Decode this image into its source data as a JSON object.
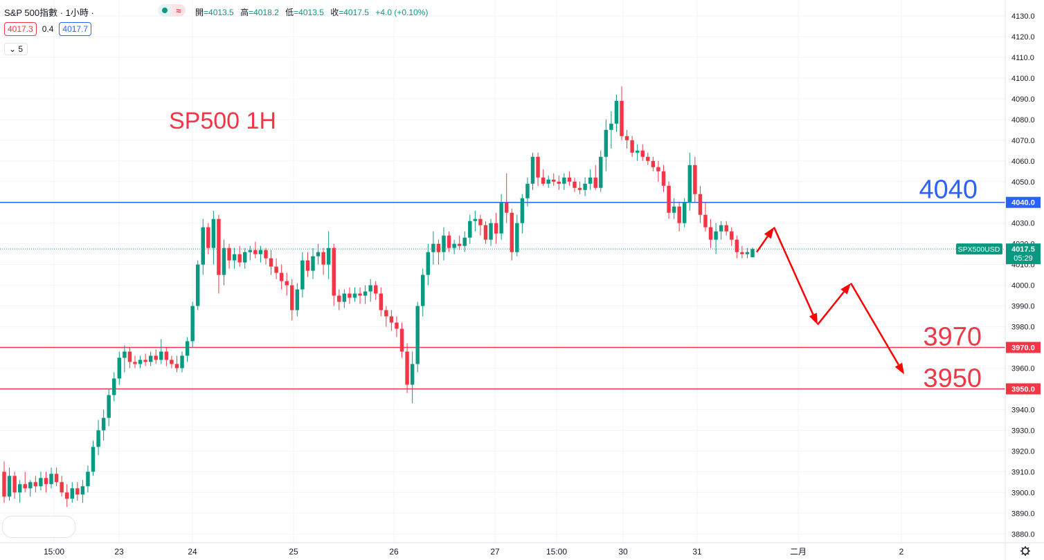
{
  "header": {
    "symbol_title": "S&P 500指數 · 1小時 ·",
    "ohlc": [
      {
        "label": "開",
        "value": "=4013.5"
      },
      {
        "label": "高",
        "value": "=4018.2"
      },
      {
        "label": "低",
        "value": "=4013.5"
      },
      {
        "label": "收",
        "value": "=4017.5"
      },
      {
        "label": "",
        "value": "+4.0 (+0.10%)"
      }
    ],
    "bid": "4017.3",
    "spread": "0.4",
    "ask": "4017.7",
    "indicators_count": "5",
    "wave_glyph": "≈"
  },
  "colors": {
    "up": "#089981",
    "down": "#f23645",
    "blue_line": "#2962ff",
    "red_line": "#f23645",
    "arrow": "#ff0000",
    "grid": "#f0f3fa",
    "axis_text": "#131722"
  },
  "chart_data": {
    "type": "candlestick",
    "annotation_title": "SP500 1H",
    "y_ticks": [
      3880,
      3890,
      3900,
      3910,
      3920,
      3930,
      3940,
      3950,
      3960,
      3970,
      3980,
      3990,
      4000,
      4010,
      4020,
      4030,
      4040,
      4050,
      4060,
      4070,
      4080,
      4090,
      4100,
      4110,
      4120,
      4130
    ],
    "ylim": [
      3877,
      4135
    ],
    "x_labels": [
      "15:00",
      "23",
      "24",
      "25",
      "26",
      "27",
      "15:00",
      "30",
      "31",
      "二月",
      "2"
    ],
    "horizontal_lines": [
      {
        "price": 4040.0,
        "label": "4040",
        "axis_label": "4040.0",
        "color": "#2962ff"
      },
      {
        "price": 3970.0,
        "label": "3970",
        "axis_label": "3970.0",
        "color": "#f23645"
      },
      {
        "price": 3950.0,
        "label": "3950",
        "axis_label": "3950.0",
        "color": "#f23645"
      }
    ],
    "current_price": {
      "symbol": "SPX500USD",
      "price": "4017.5",
      "countdown": "05:29",
      "value": 4017.5
    },
    "candles_ohlc": [
      [
        3910,
        3915,
        3895,
        3898
      ],
      [
        3898,
        3912,
        3896,
        3908
      ],
      [
        3908,
        3910,
        3897,
        3900
      ],
      [
        3900,
        3906,
        3895,
        3904
      ],
      [
        3904,
        3910,
        3900,
        3902
      ],
      [
        3902,
        3906,
        3898,
        3905
      ],
      [
        3905,
        3908,
        3900,
        3903
      ],
      [
        3903,
        3910,
        3901,
        3907
      ],
      [
        3907,
        3910,
        3900,
        3904
      ],
      [
        3904,
        3912,
        3902,
        3909
      ],
      [
        3909,
        3912,
        3903,
        3905
      ],
      [
        3905,
        3908,
        3898,
        3900
      ],
      [
        3900,
        3904,
        3893,
        3897
      ],
      [
        3897,
        3905,
        3895,
        3902
      ],
      [
        3902,
        3905,
        3896,
        3899
      ],
      [
        3899,
        3906,
        3895,
        3903
      ],
      [
        3903,
        3913,
        3900,
        3910
      ],
      [
        3910,
        3925,
        3908,
        3922
      ],
      [
        3922,
        3935,
        3918,
        3930
      ],
      [
        3930,
        3940,
        3925,
        3936
      ],
      [
        3936,
        3950,
        3932,
        3947
      ],
      [
        3947,
        3958,
        3944,
        3955
      ],
      [
        3955,
        3968,
        3952,
        3965
      ],
      [
        3965,
        3971,
        3958,
        3968
      ],
      [
        3968,
        3970,
        3960,
        3963
      ],
      [
        3963,
        3966,
        3960,
        3962
      ],
      [
        3962,
        3966,
        3960,
        3964
      ],
      [
        3964,
        3967,
        3961,
        3963
      ],
      [
        3963,
        3968,
        3961,
        3966
      ],
      [
        3966,
        3969,
        3962,
        3964
      ],
      [
        3964,
        3974,
        3962,
        3968
      ],
      [
        3968,
        3970,
        3961,
        3964
      ],
      [
        3964,
        3966,
        3960,
        3962
      ],
      [
        3962,
        3966,
        3958,
        3960
      ],
      [
        3960,
        3968,
        3958,
        3966
      ],
      [
        3966,
        3975,
        3963,
        3973
      ],
      [
        3973,
        3992,
        3970,
        3990
      ],
      [
        3990,
        4012,
        3988,
        4010
      ],
      [
        4010,
        4032,
        4005,
        4028
      ],
      [
        4028,
        4030,
        4015,
        4018
      ],
      [
        4018,
        4036,
        4010,
        4032
      ],
      [
        4032,
        4034,
        3996,
        4005
      ],
      [
        4005,
        4022,
        4000,
        4018
      ],
      [
        4018,
        4020,
        4008,
        4012
      ],
      [
        4012,
        4018,
        4008,
        4015
      ],
      [
        4015,
        4019,
        4009,
        4011
      ],
      [
        4011,
        4018,
        4008,
        4016
      ],
      [
        4016,
        4019,
        4012,
        4017
      ],
      [
        4017,
        4021,
        4013,
        4015
      ],
      [
        4015,
        4019,
        4011,
        4017
      ],
      [
        4017,
        4018,
        4010,
        4013
      ],
      [
        4013,
        4017,
        4005,
        4009
      ],
      [
        4009,
        4013,
        4003,
        4006
      ],
      [
        4006,
        4010,
        3998,
        4002
      ],
      [
        4002,
        4006,
        3995,
        4000
      ],
      [
        4000,
        4003,
        3983,
        3988
      ],
      [
        3988,
        4001,
        3985,
        3998
      ],
      [
        3998,
        4016,
        3994,
        4012
      ],
      [
        4012,
        4016,
        4004,
        4007
      ],
      [
        4007,
        4018,
        4003,
        4014
      ],
      [
        4014,
        4020,
        4010,
        4016
      ],
      [
        4016,
        4018,
        4005,
        4010
      ],
      [
        4010,
        4026,
        4003,
        4018
      ],
      [
        4018,
        4020,
        3990,
        3995
      ],
      [
        3995,
        3998,
        3988,
        3992
      ],
      [
        3992,
        3998,
        3989,
        3996
      ],
      [
        3996,
        3999,
        3991,
        3994
      ],
      [
        3994,
        3999,
        3992,
        3996
      ],
      [
        3996,
        3999,
        3991,
        3995
      ],
      [
        3995,
        4000,
        3991,
        3997
      ],
      [
        3997,
        4003,
        3992,
        4000
      ],
      [
        4000,
        4002,
        3993,
        3996
      ],
      [
        3996,
        3999,
        3985,
        3988
      ],
      [
        3988,
        3990,
        3980,
        3985
      ],
      [
        3985,
        3988,
        3978,
        3982
      ],
      [
        3982,
        3985,
        3975,
        3979
      ],
      [
        3979,
        3982,
        3965,
        3968
      ],
      [
        3968,
        3972,
        3948,
        3952
      ],
      [
        3952,
        3968,
        3943,
        3962
      ],
      [
        3962,
        3992,
        3958,
        3990
      ],
      [
        3990,
        4008,
        3985,
        4005
      ],
      [
        4005,
        4020,
        4000,
        4016
      ],
      [
        4016,
        4026,
        4010,
        4020
      ],
      [
        4020,
        4022,
        4010,
        4016
      ],
      [
        4016,
        4028,
        4012,
        4024
      ],
      [
        4024,
        4026,
        4016,
        4018
      ],
      [
        4018,
        4022,
        4015,
        4020
      ],
      [
        4020,
        4024,
        4017,
        4019
      ],
      [
        4019,
        4026,
        4016,
        4023
      ],
      [
        4023,
        4034,
        4020,
        4031
      ],
      [
        4031,
        4036,
        4026,
        4032
      ],
      [
        4032,
        4034,
        4024,
        4029
      ],
      [
        4029,
        4031,
        4020,
        4022
      ],
      [
        4022,
        4032,
        4019,
        4030
      ],
      [
        4030,
        4035,
        4020,
        4025
      ],
      [
        4025,
        4044,
        4022,
        4040
      ],
      [
        4040,
        4054,
        4030,
        4035
      ],
      [
        4035,
        4037,
        4012,
        4016
      ],
      [
        4016,
        4034,
        4014,
        4030
      ],
      [
        4030,
        4044,
        4025,
        4042
      ],
      [
        4042,
        4052,
        4038,
        4049
      ],
      [
        4049,
        4064,
        4046,
        4062
      ],
      [
        4062,
        4064,
        4048,
        4052
      ],
      [
        4052,
        4056,
        4048,
        4049
      ],
      [
        4049,
        4053,
        4047,
        4051
      ],
      [
        4051,
        4054,
        4048,
        4050
      ],
      [
        4050,
        4053,
        4046,
        4049
      ],
      [
        4049,
        4054,
        4046,
        4052
      ],
      [
        4052,
        4055,
        4048,
        4050
      ],
      [
        4050,
        4052,
        4045,
        4047
      ],
      [
        4047,
        4050,
        4044,
        4046
      ],
      [
        4046,
        4052,
        4043,
        4049
      ],
      [
        4049,
        4056,
        4046,
        4052
      ],
      [
        4052,
        4058,
        4046,
        4047
      ],
      [
        4047,
        4065,
        4045,
        4062
      ],
      [
        4062,
        4080,
        4055,
        4075
      ],
      [
        4075,
        4084,
        4066,
        4078
      ],
      [
        4078,
        4092,
        4074,
        4089
      ],
      [
        4089,
        4096,
        4070,
        4072
      ],
      [
        4072,
        4075,
        4066,
        4070
      ],
      [
        4070,
        4072,
        4062,
        4064
      ],
      [
        4064,
        4068,
        4060,
        4065
      ],
      [
        4065,
        4068,
        4060,
        4062
      ],
      [
        4062,
        4064,
        4058,
        4060
      ],
      [
        4060,
        4062,
        4055,
        4057
      ],
      [
        4057,
        4060,
        4050,
        4055
      ],
      [
        4055,
        4058,
        4045,
        4048
      ],
      [
        4048,
        4050,
        4032,
        4035
      ],
      [
        4035,
        4042,
        4032,
        4038
      ],
      [
        4038,
        4040,
        4026,
        4030
      ],
      [
        4030,
        4042,
        4028,
        4040
      ],
      [
        4040,
        4064,
        4036,
        4058
      ],
      [
        4058,
        4062,
        4040,
        4044
      ],
      [
        4044,
        4048,
        4030,
        4034
      ],
      [
        4034,
        4040,
        4026,
        4028
      ],
      [
        4028,
        4032,
        4018,
        4022
      ],
      [
        4022,
        4030,
        4015,
        4026
      ],
      [
        4026,
        4031,
        4022,
        4029
      ],
      [
        4029,
        4031,
        4024,
        4026
      ],
      [
        4026,
        4028,
        4019,
        4022
      ],
      [
        4022,
        4024,
        4013,
        4016
      ],
      [
        4016,
        4019,
        4013,
        4015
      ],
      [
        4015,
        4018,
        4013,
        4016
      ],
      [
        4013.5,
        4018.2,
        4013.5,
        4017.5
      ]
    ],
    "forecast_path": [
      {
        "x": "Jan 31 (last bar)",
        "y": 4016
      },
      {
        "x": "Jan 31 late",
        "y": 4028
      },
      {
        "x": "Feb 1",
        "y": 3981
      },
      {
        "x": "Feb 1 late",
        "y": 4001
      },
      {
        "x": "Feb 2",
        "y": 3957
      }
    ]
  }
}
